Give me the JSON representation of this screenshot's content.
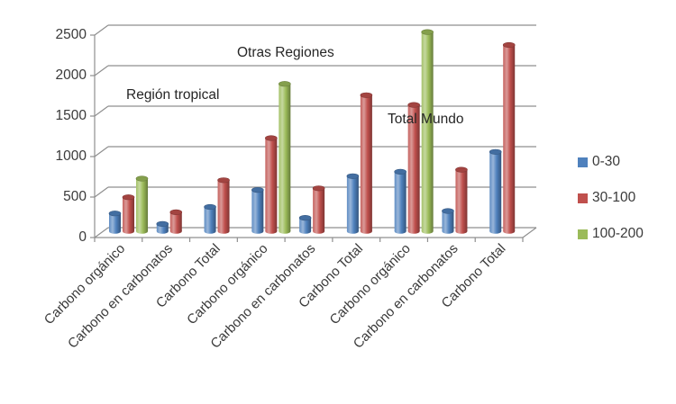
{
  "chart_data": {
    "type": "bar",
    "subtype": "3d-cylinder",
    "title": "",
    "xlabel": "",
    "ylabel": "",
    "categories": [
      "Carbono orgánico",
      "Carbono en carbonatos",
      "Carbono Total",
      "Carbono orgánico",
      "Carbono en carbonatos",
      "Carbono Total",
      "Carbono orgánico",
      "Carbono en carbonatos",
      "Carbono Total"
    ],
    "series": [
      {
        "name": "0-30",
        "color": "#4F81BD",
        "values": [
          220,
          90,
          300,
          510,
          165,
          680,
          735,
          250,
          980
        ]
      },
      {
        "name": "30-100",
        "color": "#C0504D",
        "values": [
          420,
          235,
          630,
          1150,
          530,
          1680,
          1560,
          760,
          2300
        ]
      },
      {
        "name": "100-200",
        "color": "#9BBB59",
        "values": [
          650,
          null,
          null,
          1820,
          null,
          null,
          2460,
          null,
          null
        ]
      }
    ],
    "annotations": [
      {
        "text": "Región tropical"
      },
      {
        "text": "Otras Regiones"
      },
      {
        "text": "Total Mundo"
      }
    ],
    "y_ticks": [
      0,
      500,
      1000,
      1500,
      2000,
      2500
    ],
    "ylim": [
      0,
      2500
    ],
    "grid": true,
    "legend_position": "right"
  },
  "colors": {
    "grid": "#8f8f8f",
    "axis": "#8f8f8f",
    "text": "#3a3a3a",
    "background": "#ffffff"
  }
}
